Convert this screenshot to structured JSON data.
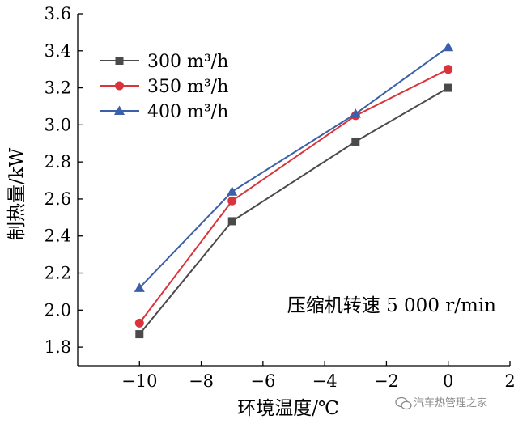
{
  "chart_data": {
    "type": "line",
    "title": "",
    "xlabel": "环境温度/℃",
    "ylabel": "制热量/kW",
    "xlim": [
      -12,
      2
    ],
    "ylim": [
      1.7,
      3.6
    ],
    "xticks": [
      -10,
      -8,
      -6,
      -4,
      -2,
      0,
      2
    ],
    "xtick_labels": [
      "−10",
      "−8",
      "−6",
      "−4",
      "−2",
      "0",
      "2"
    ],
    "yticks": [
      1.8,
      2.0,
      2.2,
      2.4,
      2.6,
      2.8,
      3.0,
      3.2,
      3.4,
      3.6
    ],
    "ytick_labels": [
      "1.8",
      "2.0",
      "2.2",
      "2.4",
      "2.6",
      "2.8",
      "3.0",
      "3.2",
      "3.4",
      "3.6"
    ],
    "x": [
      -10,
      -7,
      -3,
      0
    ],
    "series": [
      {
        "name": "300 m³/h",
        "values": [
          1.87,
          2.48,
          2.91,
          3.2
        ],
        "color": "#4a4a4a",
        "marker": "square"
      },
      {
        "name": "350 m³/h",
        "values": [
          1.93,
          2.59,
          3.05,
          3.3
        ],
        "color": "#d9343b",
        "marker": "circle"
      },
      {
        "name": "400 m³/h",
        "values": [
          2.12,
          2.64,
          3.06,
          3.42
        ],
        "color": "#3b5fa8",
        "marker": "triangle"
      }
    ],
    "grid": false,
    "legend_position": "top-left",
    "annotation": "压缩机转速 5 000 r/min"
  },
  "watermark": {
    "text": "汽车热管理之家",
    "icon": "wechat-icon",
    "color": "#8a8a8a"
  }
}
